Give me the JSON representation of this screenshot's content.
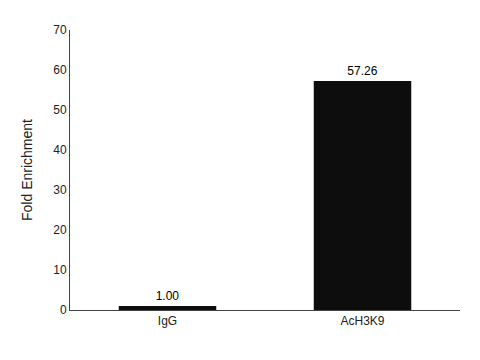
{
  "chart_data": {
    "type": "bar",
    "categories": [
      "IgG",
      "AcH3K9"
    ],
    "values": [
      1.0,
      57.26
    ],
    "value_labels": [
      "1.00",
      "57.26"
    ],
    "data_labels": true,
    "color": "#0d0d0d",
    "ylabel": "Fold Enrichment",
    "ylim": [
      0,
      70
    ],
    "yticks": [
      0,
      10,
      20,
      30,
      40,
      50,
      60,
      70
    ],
    "grid": false
  }
}
